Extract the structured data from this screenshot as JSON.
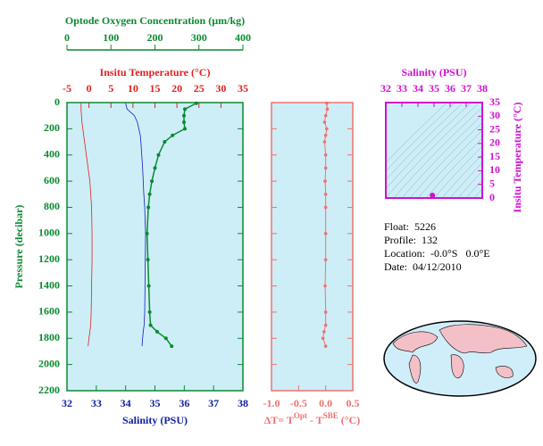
{
  "chart_data": [
    {
      "type": "line",
      "ylabel": "Pressure (decibar)",
      "ylim": [
        0,
        2200
      ],
      "yticks": [
        0,
        200,
        400,
        600,
        800,
        1000,
        1200,
        1400,
        1600,
        1800,
        2000,
        2200
      ],
      "xlabel": "Salinity (PSU)",
      "xlim": [
        32,
        38
      ],
      "xticks": [
        32,
        33,
        34,
        35,
        36,
        37,
        38
      ],
      "x2label": "Insitu Temperature (°C)",
      "x2lim": [
        -5,
        35
      ],
      "x2ticks": [
        -5,
        0,
        5,
        10,
        15,
        20,
        25,
        30,
        35
      ],
      "x3label": "Optode Oxygen Concentration (µm/kg)",
      "x3lim": [
        0,
        400
      ],
      "x3ticks": [
        0,
        100,
        200,
        300,
        400
      ],
      "y": [
        5,
        50,
        100,
        150,
        200,
        250,
        300,
        400,
        500,
        600,
        700,
        800,
        1000,
        1200,
        1400,
        1600,
        1700,
        1750,
        1800,
        1860
      ],
      "series": [
        {
          "axis": "x2",
          "color": "#e02020",
          "values": [
            -1.8,
            -1.8,
            -1.7,
            -1.6,
            -1.4,
            -1.2,
            -1.0,
            -0.6,
            -0.2,
            0.2,
            0.4,
            0.6,
            0.7,
            0.7,
            0.6,
            0.5,
            0.4,
            0.2,
            0.0,
            -0.2
          ]
        },
        {
          "axis": "x",
          "color": "#1020c0",
          "values": [
            34.0,
            34.05,
            34.3,
            34.4,
            34.45,
            34.5,
            34.52,
            34.55,
            34.58,
            34.6,
            34.62,
            34.65,
            34.68,
            34.67,
            34.66,
            34.65,
            34.63,
            34.6,
            34.58,
            34.56
          ]
        },
        {
          "axis": "x3",
          "color": "#0a8a30",
          "values": [
            294,
            268,
            266,
            266,
            268,
            240,
            222,
            208,
            200,
            193,
            188,
            185,
            182,
            184,
            186,
            188,
            190,
            205,
            225,
            238
          ]
        }
      ]
    },
    {
      "type": "line",
      "xlabel_parts": [
        "ΔT= T",
        "Opt",
        " - T",
        "SBE",
        " (°C)"
      ],
      "xlim": [
        -1.0,
        0.5
      ],
      "xticks": [
        {
          "value": -1.0,
          "label": "-1.0"
        },
        {
          "value": -0.5,
          "label": "-0.5"
        },
        {
          "value": 0.0,
          "label": "0.0"
        },
        {
          "value": 0.5,
          "label": "0.5"
        }
      ],
      "ylim": [
        0,
        2200
      ],
      "yticks": [
        0,
        200,
        400,
        600,
        800,
        1000,
        1200,
        1400,
        1600,
        1800,
        2000,
        2200
      ],
      "y": [
        5,
        50,
        100,
        150,
        200,
        250,
        300,
        400,
        500,
        600,
        700,
        800,
        1000,
        1200,
        1400,
        1600,
        1700,
        1750,
        1800,
        1860
      ],
      "series": [
        {
          "color": "#f07070",
          "values": [
            0.02,
            0.03,
            0.0,
            -0.02,
            0.02,
            0.0,
            -0.02,
            0.0,
            0.0,
            -0.01,
            0.0,
            0.0,
            0.0,
            0.0,
            -0.01,
            0.0,
            0.0,
            -0.03,
            -0.05,
            0.0
          ]
        }
      ]
    },
    {
      "type": "scatter",
      "title": "Salinity (PSU)",
      "xlim": [
        32,
        38
      ],
      "xticks": [
        32,
        33,
        34,
        35,
        36,
        37,
        38
      ],
      "ylabel": "Insitu Temperature (°C)",
      "ylim": [
        0,
        35
      ],
      "yticks": [
        0,
        5,
        10,
        15,
        20,
        25,
        30,
        35
      ],
      "color": "#d010d0",
      "x": [
        34.9
      ],
      "values": [
        1.0
      ]
    }
  ],
  "info": [
    "Float:  5226",
    "Profile:  132",
    "Location:  -0.0°S   0.0°E",
    "Date:  04/12/2010"
  ]
}
